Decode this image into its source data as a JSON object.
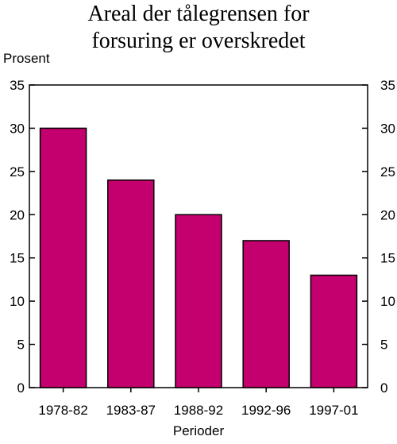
{
  "chart_data": {
    "type": "bar",
    "title_lines": [
      "Areal der tålegrensen for",
      "forsuring er overskredet"
    ],
    "xlabel": "Perioder",
    "ylabel": "Prosent",
    "categories": [
      "1978-82",
      "1983-87",
      "1988-92",
      "1992-96",
      "1997-01"
    ],
    "values": [
      30,
      24,
      20,
      17,
      13
    ],
    "ylim": [
      0,
      35
    ],
    "yticks": [
      0,
      5,
      10,
      15,
      20,
      25,
      30,
      35
    ],
    "grid": false,
    "legend": "none",
    "bar_color": "#c4006e"
  }
}
